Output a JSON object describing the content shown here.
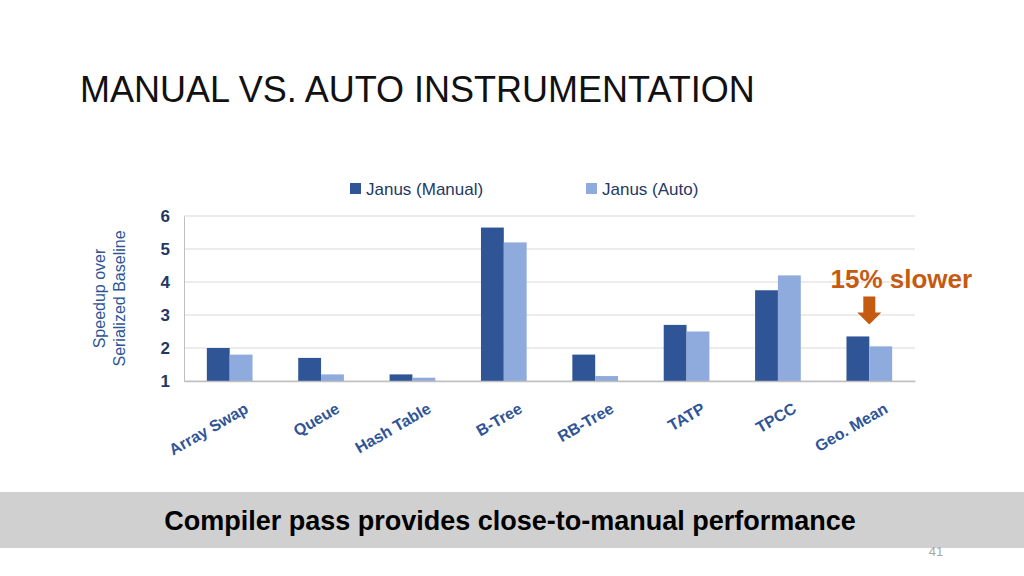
{
  "chart_data": {
    "type": "bar",
    "title": "MANUAL VS. AUTO INSTRUMENTATION",
    "ylabel": [
      "Speedup over",
      "Serialized Baseline"
    ],
    "categories": [
      "Array Swap",
      "Queue",
      "Hash Table",
      "B-Tree",
      "RB-Tree",
      "TATP",
      "TPCC",
      "Geo. Mean"
    ],
    "series": [
      {
        "name": "Janus (Manual)",
        "color": "#2f5597",
        "values": [
          2.0,
          1.7,
          1.2,
          5.65,
          1.8,
          2.7,
          3.75,
          2.35
        ]
      },
      {
        "name": "Janus (Auto)",
        "color": "#8faadc",
        "values": [
          1.8,
          1.2,
          1.1,
          5.2,
          1.15,
          2.5,
          4.2,
          2.05
        ]
      }
    ],
    "ylim": [
      1,
      6
    ],
    "yticks": [
      1,
      2,
      3,
      4,
      5,
      6
    ],
    "grid": true,
    "legend": "top",
    "annotation": "15% slower",
    "footer": "Compiler pass provides close-to-manual performance",
    "page_number": "41"
  }
}
